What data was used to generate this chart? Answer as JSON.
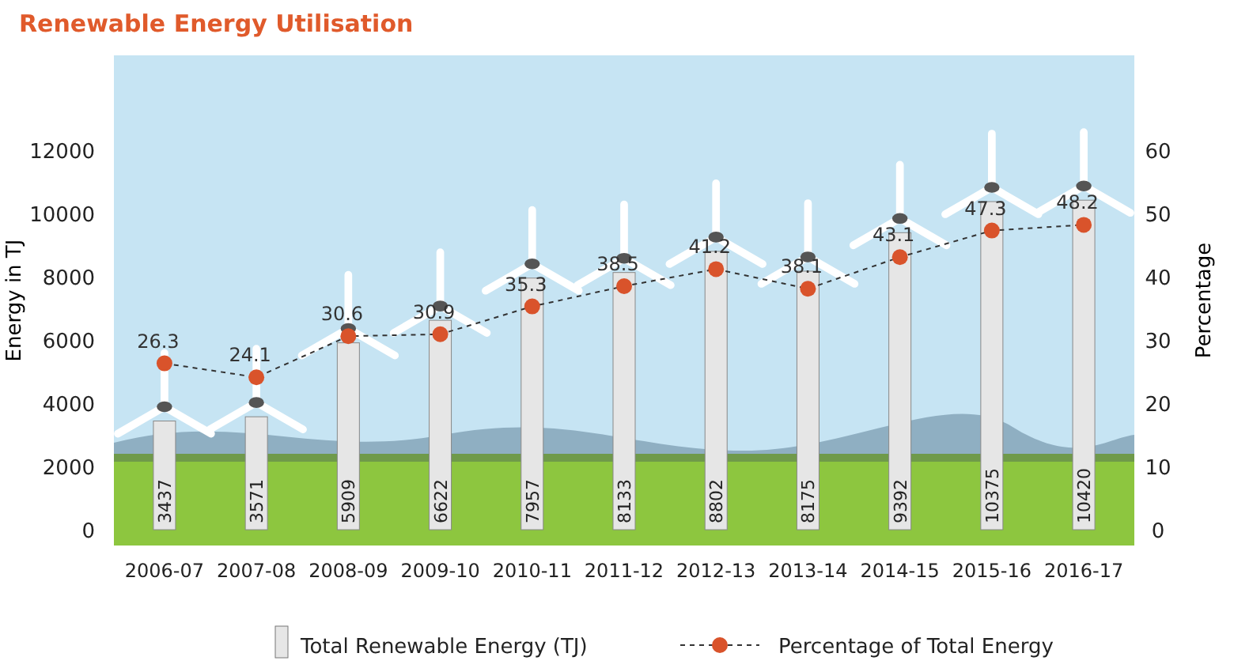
{
  "chart_data": {
    "type": "bar",
    "title": "Renewable Energy Utilisation",
    "xlabel": null,
    "ylabel": "Energy in TJ",
    "y2label": "Percentage",
    "categories": [
      "2006-07",
      "2007-08",
      "2008-09",
      "2009-10",
      "2010-11",
      "2011-12",
      "2012-13",
      "2013-14",
      "2014-15",
      "2015-16",
      "2016-17"
    ],
    "series": [
      {
        "name": "Total Renewable Energy (TJ)",
        "color": "#e6e6e6",
        "values": [
          3437,
          3571,
          5909,
          6622,
          7957,
          8133,
          8802,
          8175,
          9392,
          10375,
          10420
        ]
      },
      {
        "name": "Percentage of Total Energy",
        "type": "line",
        "axis": "y2",
        "color": "#d9532b",
        "line_style": "dashed",
        "marker": "circle",
        "values": [
          26.3,
          24.1,
          30.6,
          30.9,
          35.3,
          38.5,
          41.2,
          38.1,
          43.1,
          47.3,
          48.2
        ]
      }
    ],
    "ylim": [
      0,
      15000
    ],
    "yticks": [
      0,
      2000,
      4000,
      6000,
      8000,
      10000,
      12000
    ],
    "y2lim": [
      0,
      75
    ],
    "y2ticks": [
      0,
      10,
      20,
      30,
      40,
      50,
      60
    ],
    "data_labels": true,
    "grid": false,
    "legend": "bottom"
  }
}
